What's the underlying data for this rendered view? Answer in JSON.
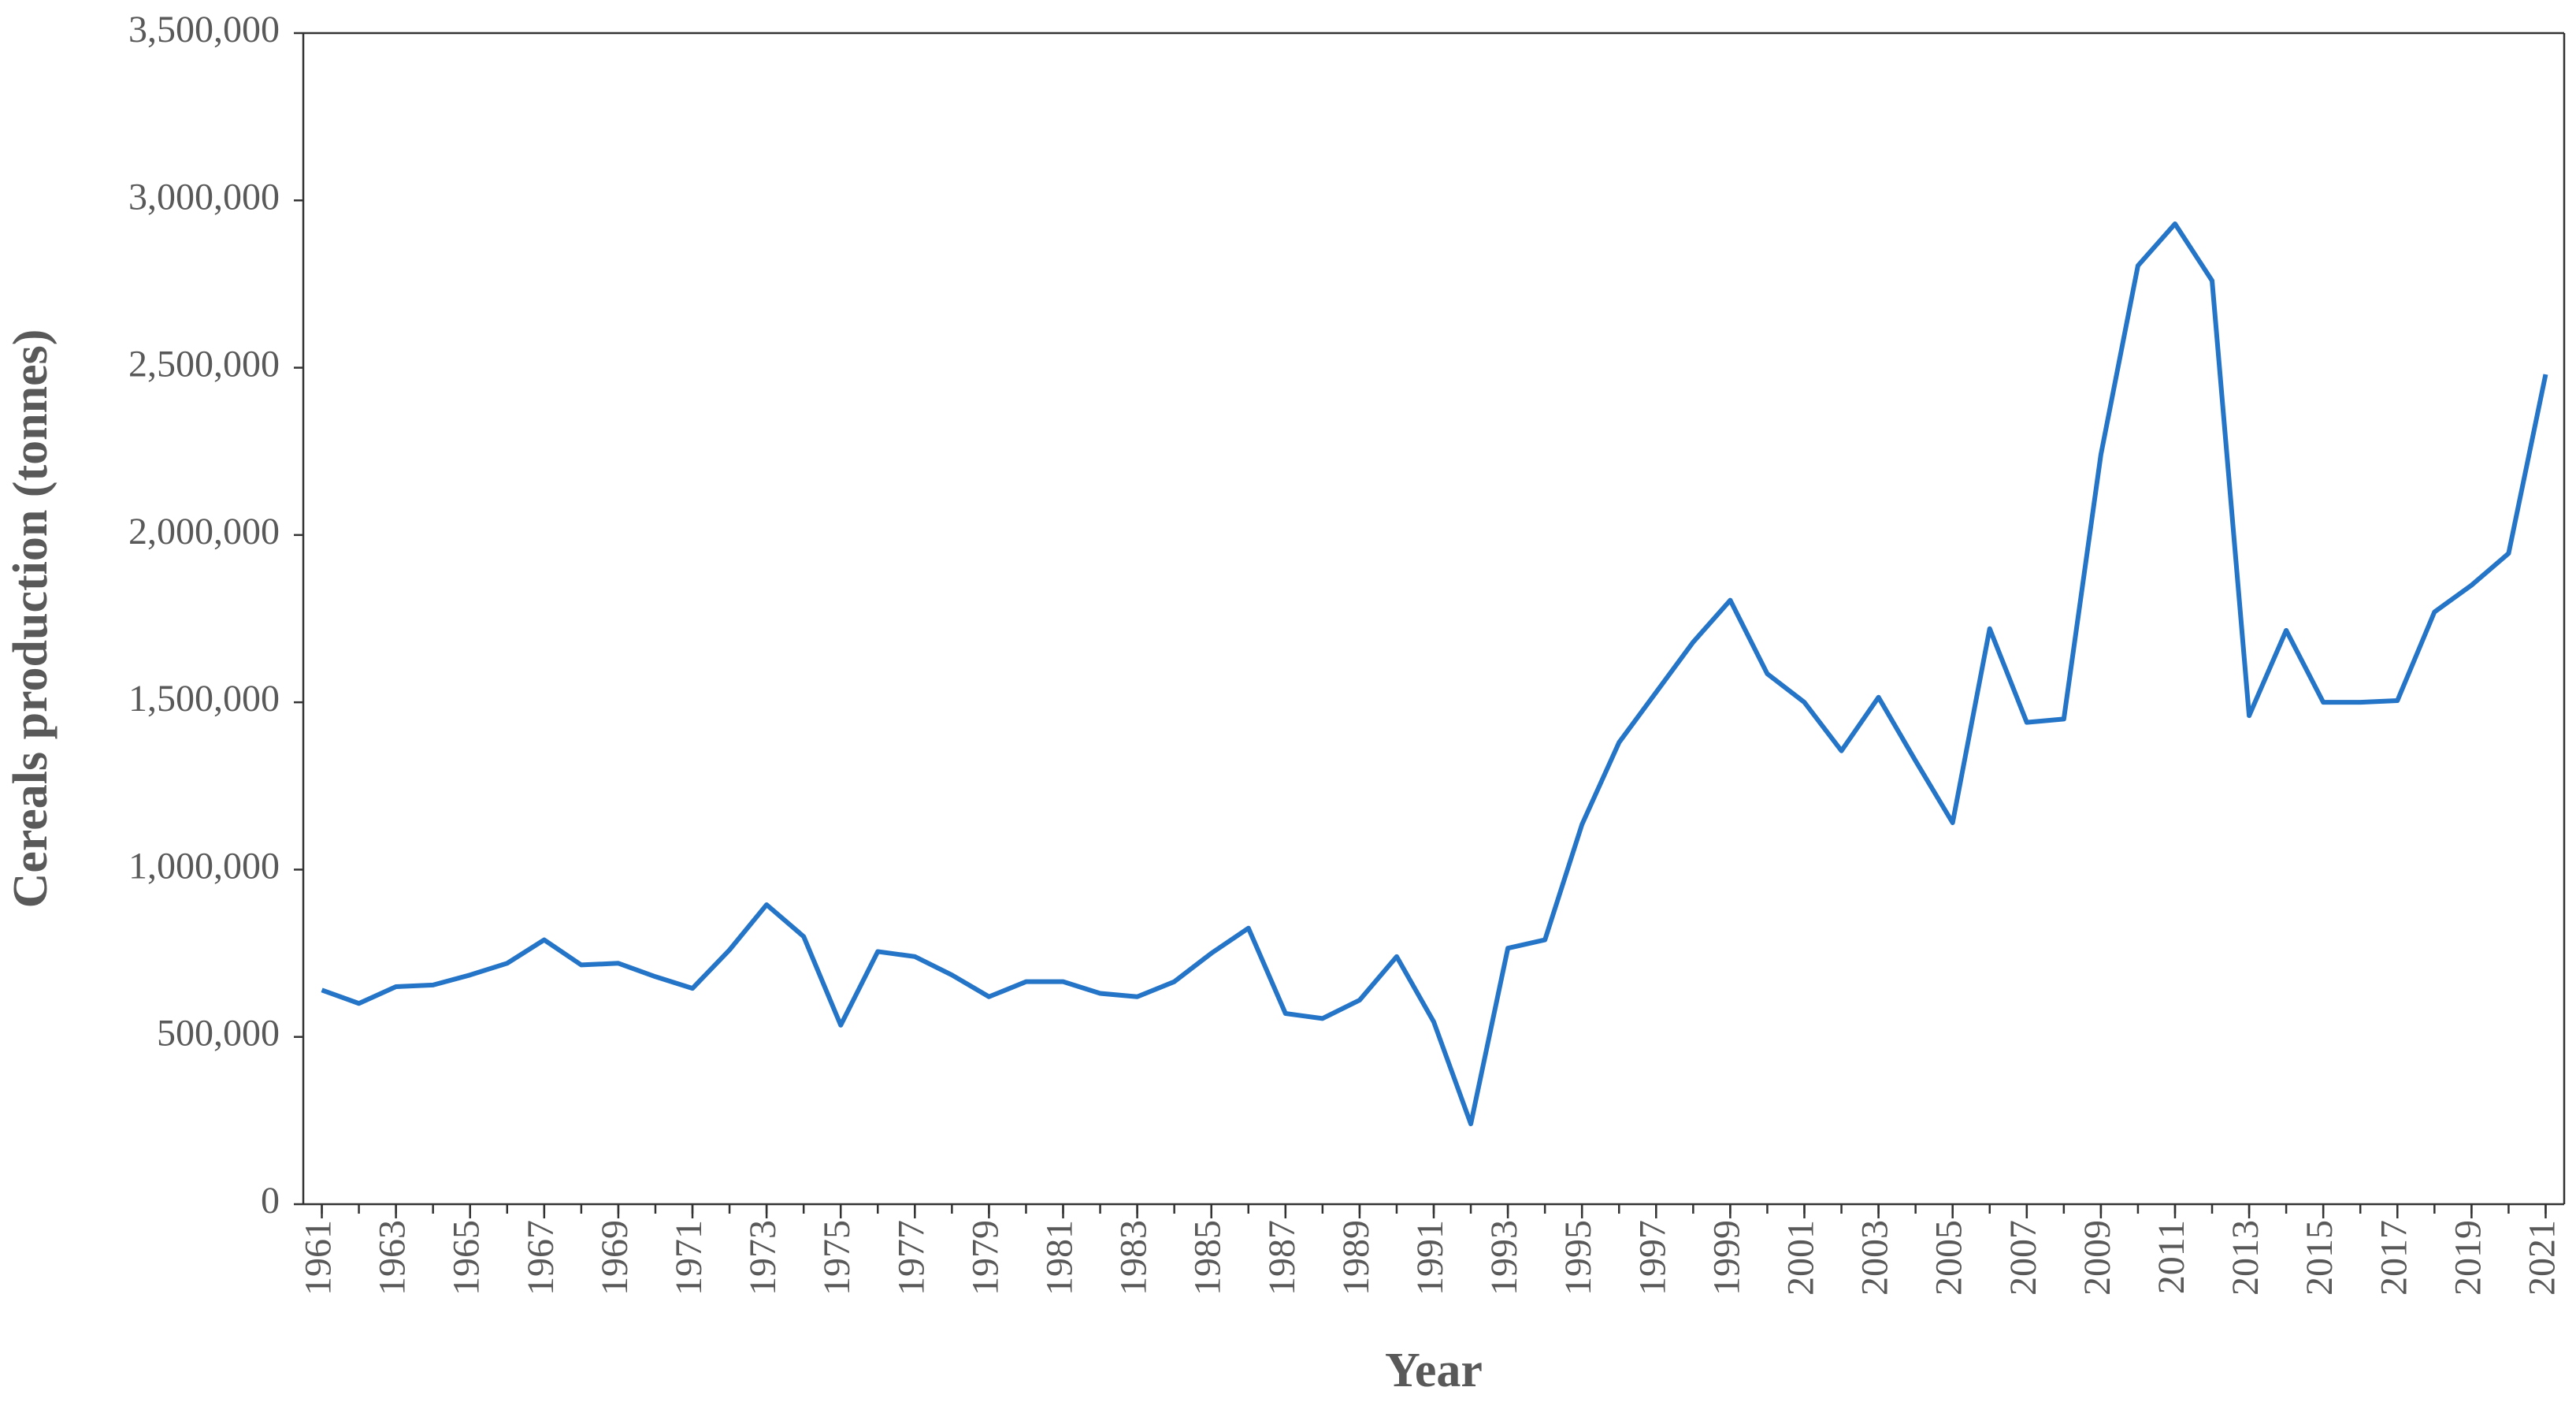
{
  "chart_data": {
    "type": "line",
    "xlabel": "Year",
    "ylabel": "Cereals production (tonnes)",
    "x": [
      1961,
      1962,
      1963,
      1964,
      1965,
      1966,
      1967,
      1968,
      1969,
      1970,
      1971,
      1972,
      1973,
      1974,
      1975,
      1976,
      1977,
      1978,
      1979,
      1980,
      1981,
      1982,
      1983,
      1984,
      1985,
      1986,
      1987,
      1988,
      1989,
      1990,
      1991,
      1992,
      1993,
      1994,
      1995,
      1996,
      1997,
      1998,
      1999,
      2000,
      2001,
      2002,
      2003,
      2004,
      2005,
      2006,
      2007,
      2008,
      2009,
      2010,
      2011,
      2012,
      2013,
      2014,
      2015,
      2016,
      2017,
      2018,
      2019,
      2020,
      2021
    ],
    "series": [
      {
        "color": "#2474c8",
        "values": [
          640000,
          600000,
          650000,
          655000,
          685000,
          720000,
          790000,
          715000,
          720000,
          680000,
          645000,
          760000,
          895000,
          800000,
          535000,
          755000,
          740000,
          685000,
          620000,
          665000,
          665000,
          630000,
          620000,
          665000,
          750000,
          825000,
          570000,
          555000,
          610000,
          740000,
          545000,
          240000,
          765000,
          790000,
          1135000,
          1380000,
          1530000,
          1680000,
          1805000,
          1585000,
          1500000,
          1355000,
          1515000,
          1325000,
          1140000,
          1720000,
          1440000,
          1450000,
          2240000,
          2805000,
          2930000,
          2760000,
          1460000,
          1715000,
          1500000,
          1500000,
          1505000,
          1770000,
          1850000,
          1945000,
          2480000
        ]
      }
    ],
    "xlim": [
      1960.5,
      2021.5
    ],
    "xticks": [
      1961,
      1963,
      1965,
      1967,
      1969,
      1971,
      1973,
      1975,
      1977,
      1979,
      1981,
      1983,
      1985,
      1987,
      1989,
      1991,
      1993,
      1995,
      1997,
      1999,
      2001,
      2003,
      2005,
      2007,
      2009,
      2011,
      2013,
      2015,
      2017,
      2019,
      2021
    ],
    "ylim": [
      0,
      3500000
    ],
    "yticks": [
      0,
      {
        "value": 500000,
        "label": "500,000"
      },
      {
        "value": 1000000,
        "label": "1,000,000"
      },
      {
        "value": 1500000,
        "label": "1,500,000"
      },
      {
        "value": 2000000,
        "label": "2,000,000"
      },
      {
        "value": 2500000,
        "label": "2,500,000"
      },
      {
        "value": 3000000,
        "label": "3,000,000"
      },
      {
        "value": 3500000,
        "label": "3,500,000"
      }
    ],
    "grid": false
  }
}
